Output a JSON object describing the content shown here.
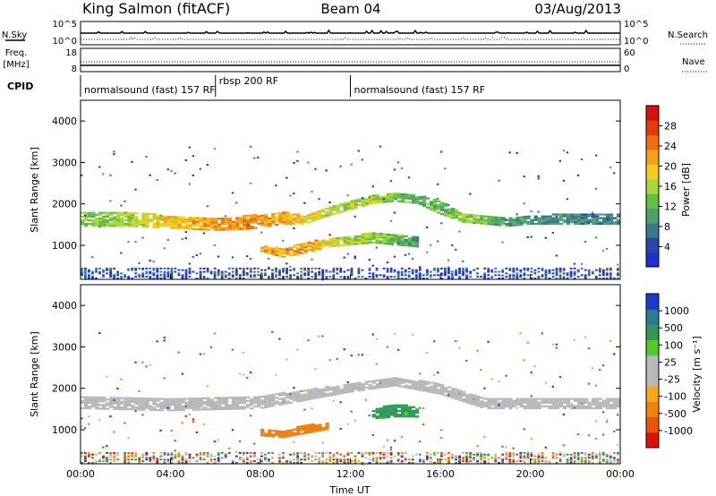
{
  "header": {
    "station": "King Salmon (fitACF)",
    "beam": "Beam 04",
    "date": "03/Aug/2013"
  },
  "noise_panel": {
    "left_label": "N.Sky",
    "right_label": "N.Search",
    "left_ticks": [
      "10^5",
      "10^0"
    ],
    "right_ticks": [
      "10^5",
      "10^0"
    ]
  },
  "freq_panel": {
    "left_label_top": "Freq.",
    "left_label_bottom": "[MHz]",
    "right_label": "Nave",
    "left_ticks": [
      "18",
      "8"
    ],
    "right_ticks": [
      "60",
      "0"
    ]
  },
  "cpid": {
    "label": "CPID",
    "segments": [
      {
        "start_hour": 0.0,
        "text": "normalsound (fast) 157 RF"
      },
      {
        "start_hour": 6.0,
        "text": "rbsp 200 RF"
      },
      {
        "start_hour": 12.0,
        "text": "normalsound (fast) 157 RF"
      }
    ]
  },
  "chart_data": [
    {
      "type": "heatmap",
      "title": "",
      "xlabel": "",
      "ylabel": "Slant Range [km]",
      "xlim_hours": [
        0,
        24
      ],
      "ylim_km": [
        180,
        4500
      ],
      "yticks": [
        "1000",
        "2000",
        "3000",
        "4000"
      ],
      "colorbar": {
        "label": "Power [dB]",
        "ticks": [
          "4",
          "8",
          "12",
          "16",
          "20",
          "24",
          "28"
        ],
        "colors": [
          "#1e2fd6",
          "#2848a8",
          "#3c7a8a",
          "#4fa070",
          "#62c040",
          "#a8d43c",
          "#f6cc1c",
          "#f5a018",
          "#f07010",
          "#e83808",
          "#d81208"
        ]
      },
      "bands": [
        {
          "name": "main",
          "points": [
            [
              0,
              1450,
              1800,
              14
            ],
            [
              2,
              1450,
              1800,
              16
            ],
            [
              4,
              1400,
              1700,
              19
            ],
            [
              6,
              1350,
              1650,
              22
            ],
            [
              7.5,
              1380,
              1700,
              23
            ],
            [
              9,
              1500,
              1800,
              21
            ],
            [
              10,
              1500,
              1700,
              18
            ],
            [
              11,
              1700,
              1900,
              17
            ],
            [
              12,
              1850,
              2050,
              16
            ],
            [
              13,
              2000,
              2200,
              15
            ],
            [
              14,
              2050,
              2250,
              14
            ],
            [
              15,
              2000,
              2200,
              12
            ],
            [
              16,
              1750,
              2050,
              12
            ],
            [
              17,
              1550,
              1750,
              15
            ],
            [
              18,
              1500,
              1700,
              13
            ],
            [
              19,
              1450,
              1650,
              10
            ],
            [
              20,
              1500,
              1700,
              9
            ],
            [
              22,
              1500,
              1750,
              9
            ],
            [
              24,
              1500,
              1750,
              8
            ]
          ]
        },
        {
          "name": "lower",
          "points": [
            [
              8,
              850,
              1000,
              22
            ],
            [
              9,
              700,
              900,
              20
            ],
            [
              10,
              800,
              1050,
              22
            ],
            [
              11,
              950,
              1150,
              18
            ],
            [
              12,
              1000,
              1200,
              16
            ],
            [
              13,
              1050,
              1300,
              15
            ],
            [
              14,
              1000,
              1250,
              13
            ],
            [
              15,
              950,
              1200,
              10
            ]
          ]
        }
      ]
    },
    {
      "type": "heatmap",
      "title": "",
      "xlabel": "Time UT",
      "ylabel": "Slant Range [km]",
      "xlim_hours": [
        0,
        24
      ],
      "ylim_km": [
        180,
        4500
      ],
      "xticks": [
        "00:00",
        "04:00",
        "08:00",
        "12:00",
        "16:00",
        "20:00",
        "00:00"
      ],
      "yticks": [
        "1000",
        "2000",
        "3000",
        "4000"
      ],
      "colorbar": {
        "label": "Velocity [m s⁻¹]",
        "ticks": [
          "1000",
          "500",
          "100",
          "25",
          "-25",
          "-100",
          "-500",
          "-1000"
        ],
        "colors": [
          "#1c3ad0",
          "#2c7a9a",
          "#2e9a5a",
          "#58c828",
          "#b8b8b8",
          "#b8b8b8",
          "#f4a818",
          "#f08010",
          "#ec5408",
          "#e01008"
        ]
      },
      "bands": [
        {
          "name": "ground-scatter",
          "points": [
            [
              0,
              1500,
              1800,
              0
            ],
            [
              4,
              1450,
              1750,
              0
            ],
            [
              8,
              1500,
              1800,
              0
            ],
            [
              12,
              1900,
              2100,
              0
            ],
            [
              14,
              2050,
              2250,
              0
            ],
            [
              16,
              1850,
              2100,
              0
            ],
            [
              18,
              1500,
              1750,
              0
            ],
            [
              24,
              1500,
              1750,
              0
            ]
          ]
        },
        {
          "name": "approaching",
          "points": [
            [
              8,
              850,
              1000,
              -150
            ],
            [
              9,
              800,
              950,
              -250
            ],
            [
              10,
              900,
              1100,
              -200
            ],
            [
              11,
              1000,
              1150,
              -150
            ]
          ]
        },
        {
          "name": "receding",
          "points": [
            [
              13,
              1250,
              1500,
              150
            ],
            [
              14,
              1300,
              1600,
              150
            ],
            [
              15,
              1300,
              1550,
              100
            ]
          ]
        }
      ]
    }
  ]
}
